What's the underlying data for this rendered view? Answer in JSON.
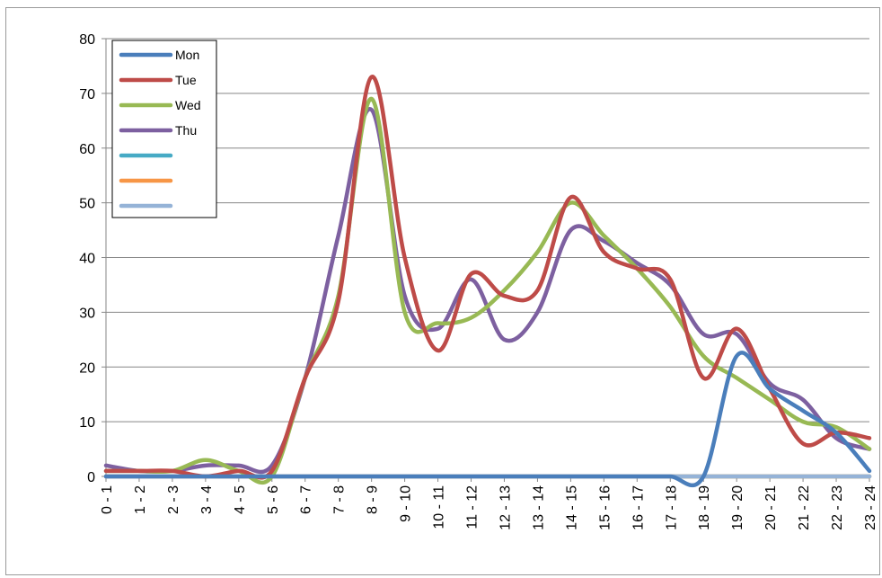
{
  "chart_data": {
    "type": "line",
    "title": "",
    "xlabel": "",
    "ylabel": "",
    "ylim": [
      0,
      80
    ],
    "yticks": [
      0,
      10,
      20,
      30,
      40,
      50,
      60,
      70,
      80
    ],
    "grid": true,
    "legend_position": "top-left",
    "categories": [
      "0 - 1",
      "1 - 2",
      "2 - 3",
      "3 - 4",
      "4 - 5",
      "5 - 6",
      "6 - 7",
      "7 - 8",
      "8 - 9",
      "9 - 10",
      "10 - 11",
      "11 - 12",
      "12 - 13",
      "13 - 14",
      "14 - 15",
      "15 - 16",
      "16 - 17",
      "17 - 18",
      "18 - 19",
      "19 - 20",
      "20 - 21",
      "21 - 22",
      "22 - 23",
      "23 - 24"
    ],
    "series": [
      {
        "name": "Mon",
        "color": "#4a7ebb",
        "values": [
          0,
          0,
          0,
          0,
          0,
          0,
          0,
          0,
          0,
          0,
          0,
          0,
          0,
          0,
          0,
          0,
          0,
          0,
          0,
          22,
          16,
          12,
          8,
          1
        ]
      },
      {
        "name": "Tue",
        "color": "#be4b48",
        "values": [
          1,
          1,
          1,
          0,
          1,
          1,
          18,
          32,
          73,
          40,
          23,
          37,
          33,
          34,
          51,
          41,
          38,
          36,
          18,
          27,
          16,
          6,
          8,
          7
        ]
      },
      {
        "name": "Wed",
        "color": "#98b954",
        "values": [
          1,
          1,
          1,
          3,
          1,
          0,
          18,
          33,
          69,
          30,
          28,
          29,
          34,
          41,
          50,
          44,
          38,
          31,
          22,
          18,
          14,
          10,
          9,
          5
        ]
      },
      {
        "name": "Thu",
        "color": "#7d60a0",
        "values": [
          2,
          1,
          1,
          2,
          2,
          2,
          18,
          44,
          67,
          33,
          27,
          36,
          25,
          30,
          45,
          43,
          39,
          35,
          26,
          26,
          17,
          14,
          7,
          5
        ]
      },
      {
        "name": "",
        "color": "#46aac5",
        "values": [
          0,
          0,
          0,
          0,
          0,
          0,
          0,
          0,
          0,
          0,
          0,
          0,
          0,
          0,
          0,
          0,
          0,
          0,
          0,
          0,
          0,
          0,
          0,
          0
        ]
      },
      {
        "name": "",
        "color": "#f79646",
        "values": [
          0,
          0,
          0,
          0,
          0,
          0,
          0,
          0,
          0,
          0,
          0,
          0,
          0,
          0,
          0,
          0,
          0,
          0,
          0,
          0,
          0,
          0,
          0,
          0
        ]
      },
      {
        "name": "",
        "color": "#95b3d7",
        "values": [
          0,
          0,
          0,
          0,
          0,
          0,
          0,
          0,
          0,
          0,
          0,
          0,
          0,
          0,
          0,
          0,
          0,
          0,
          0,
          0,
          0,
          0,
          0,
          0
        ]
      }
    ]
  }
}
